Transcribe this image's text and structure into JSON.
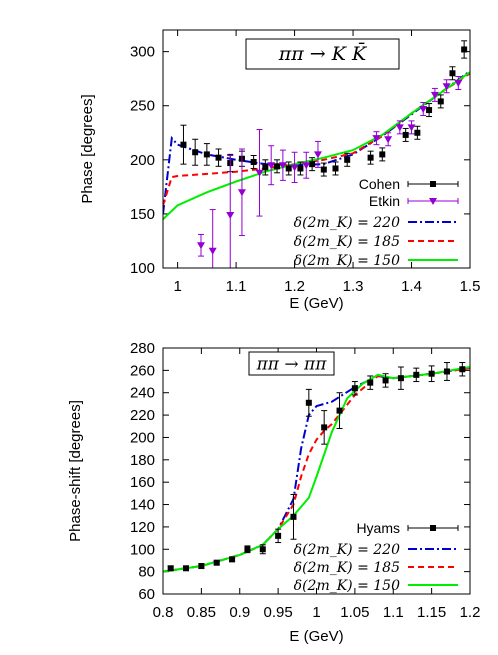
{
  "chart_data": [
    {
      "type": "line",
      "title": "ππ → K K̄",
      "xlabel": "E (GeV)",
      "ylabel": "Phase [degrees]",
      "xlim": [
        0.975,
        1.5
      ],
      "ylim": [
        100,
        320
      ],
      "xticks": [
        "1",
        "1.1",
        "1.2",
        "1.3",
        "1.4",
        "1.5"
      ],
      "yticks": [
        "100",
        "150",
        "200",
        "250",
        "300"
      ],
      "legend_position": "bottom-right",
      "points": [
        {
          "name": "Cohen",
          "color": "#000000",
          "marker": "square",
          "data": [
            [
              1.01,
              214,
              18
            ],
            [
              1.03,
              207,
              12
            ],
            [
              1.05,
              205,
              10
            ],
            [
              1.07,
              202,
              8
            ],
            [
              1.09,
              197,
              8
            ],
            [
              1.11,
              201,
              7
            ],
            [
              1.13,
              198,
              6
            ],
            [
              1.15,
              193,
              7
            ],
            [
              1.17,
              194,
              6
            ],
            [
              1.19,
              192,
              6
            ],
            [
              1.21,
              192,
              6
            ],
            [
              1.23,
              196,
              6
            ],
            [
              1.25,
              191,
              6
            ],
            [
              1.27,
              192,
              6
            ],
            [
              1.29,
              200,
              6
            ],
            [
              1.33,
              202,
              6
            ],
            [
              1.35,
              205,
              6
            ],
            [
              1.39,
              223,
              6
            ],
            [
              1.41,
              225,
              6
            ],
            [
              1.43,
              246,
              6
            ],
            [
              1.45,
              254,
              6
            ],
            [
              1.47,
              280,
              6
            ],
            [
              1.49,
              302,
              8
            ]
          ]
        },
        {
          "name": "Etkin",
          "color": "#9400d3",
          "marker": "triangle-down",
          "data": [
            [
              1.04,
              121,
              10
            ],
            [
              1.06,
              116,
              38
            ],
            [
              1.09,
              149,
              55
            ],
            [
              1.11,
              170,
              40
            ],
            [
              1.14,
              188,
              40
            ],
            [
              1.16,
              195,
              18
            ],
            [
              1.18,
              195,
              14
            ],
            [
              1.2,
              193,
              14
            ],
            [
              1.22,
              195,
              12
            ],
            [
              1.24,
              205,
              12
            ],
            [
              1.34,
              220,
              6
            ],
            [
              1.36,
              219,
              6
            ],
            [
              1.38,
              230,
              6
            ],
            [
              1.4,
              230,
              6
            ],
            [
              1.42,
              247,
              6
            ],
            [
              1.44,
              260,
              6
            ],
            [
              1.46,
              268,
              6
            ],
            [
              1.48,
              271,
              6
            ]
          ]
        }
      ],
      "series": [
        {
          "name": "δ(2m_K) = 220",
          "color": "#0000cd",
          "dash": "dashdot",
          "x": [
            0.975,
            0.99,
            1.0,
            1.05,
            1.1,
            1.15,
            1.2,
            1.25,
            1.3,
            1.35,
            1.4,
            1.45,
            1.5
          ],
          "y": [
            150,
            220,
            214,
            205,
            200,
            196,
            195,
            196,
            205,
            222,
            242,
            262,
            282
          ]
        },
        {
          "name": "δ(2m_K) = 185",
          "color": "#ff0000",
          "dash": "dash",
          "x": [
            0.975,
            0.99,
            1.0,
            1.05,
            1.1,
            1.15,
            1.2,
            1.25,
            1.3,
            1.35,
            1.4,
            1.45,
            1.5
          ],
          "y": [
            158,
            184,
            185,
            187,
            189,
            192,
            196,
            200,
            206,
            222,
            243,
            262,
            280
          ]
        },
        {
          "name": "δ(2m_K) = 150",
          "color": "#00ee00",
          "dash": "solid",
          "x": [
            0.975,
            1.0,
            1.05,
            1.1,
            1.15,
            1.2,
            1.25,
            1.3,
            1.35,
            1.4,
            1.45,
            1.5
          ],
          "y": [
            145,
            158,
            170,
            180,
            189,
            196,
            202,
            209,
            223,
            243,
            262,
            281
          ]
        }
      ]
    },
    {
      "type": "line",
      "title": "ππ → ππ",
      "xlabel": "E (GeV)",
      "ylabel": "Phase-shift [degrees]",
      "xlim": [
        0.8,
        1.2
      ],
      "ylim": [
        60,
        280
      ],
      "xticks": [
        "0.8",
        "0.85",
        "0.9",
        "0.95",
        "1",
        "1.05",
        "1.1",
        "1.15",
        "1.2"
      ],
      "yticks": [
        "60",
        "80",
        "100",
        "120",
        "140",
        "160",
        "180",
        "200",
        "220",
        "240",
        "260",
        "280"
      ],
      "legend_position": "bottom-right",
      "points": [
        {
          "name": "Hyams",
          "color": "#000000",
          "marker": "square",
          "data": [
            [
              0.81,
              83,
              2
            ],
            [
              0.83,
              83,
              2
            ],
            [
              0.85,
              85,
              2
            ],
            [
              0.87,
              88,
              2
            ],
            [
              0.89,
              91,
              2
            ],
            [
              0.91,
              100,
              3
            ],
            [
              0.93,
              100,
              4
            ],
            [
              0.95,
              112,
              6
            ],
            [
              0.97,
              129,
              20
            ],
            [
              0.99,
              231,
              12
            ],
            [
              1.01,
              209,
              15
            ],
            [
              1.03,
              224,
              16
            ],
            [
              1.05,
              244,
              6
            ],
            [
              1.07,
              249,
              6
            ],
            [
              1.09,
              251,
              6
            ],
            [
              1.11,
              253,
              10
            ],
            [
              1.13,
              256,
              6
            ],
            [
              1.15,
              257,
              7
            ],
            [
              1.17,
              259,
              8
            ],
            [
              1.19,
              261,
              6
            ]
          ]
        }
      ],
      "series": [
        {
          "name": "δ(2m_K) = 220",
          "color": "#0000cd",
          "dash": "dashdot",
          "x": [
            0.8,
            0.85,
            0.9,
            0.93,
            0.95,
            0.97,
            0.98,
            0.99,
            1.0,
            1.02,
            1.05,
            1.08,
            1.1,
            1.15,
            1.2
          ],
          "y": [
            80,
            85,
            95,
            104,
            118,
            145,
            190,
            220,
            228,
            232,
            245,
            255,
            253,
            257,
            262
          ]
        },
        {
          "name": "δ(2m_K) = 185",
          "color": "#ff0000",
          "dash": "dash",
          "x": [
            0.8,
            0.85,
            0.9,
            0.93,
            0.95,
            0.97,
            0.98,
            0.99,
            1.0,
            1.01,
            1.02,
            1.05,
            1.08,
            1.1,
            1.15,
            1.2
          ],
          "y": [
            80,
            85,
            95,
            104,
            118,
            140,
            165,
            185,
            198,
            206,
            212,
            238,
            255,
            253,
            257,
            262
          ]
        },
        {
          "name": "δ(2m_K) = 150",
          "color": "#00ee00",
          "dash": "solid",
          "x": [
            0.8,
            0.85,
            0.9,
            0.93,
            0.95,
            0.97,
            0.99,
            1.0,
            1.02,
            1.04,
            1.06,
            1.08,
            1.1,
            1.15,
            1.2
          ],
          "y": [
            80,
            85,
            95,
            104,
            118,
            130,
            146,
            165,
            205,
            235,
            248,
            256,
            253,
            257,
            263
          ]
        }
      ]
    }
  ]
}
